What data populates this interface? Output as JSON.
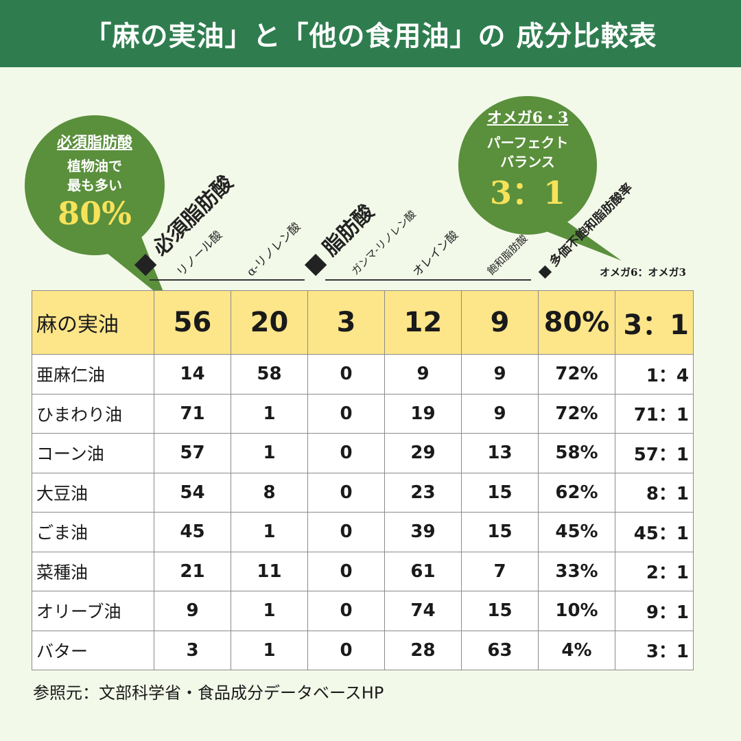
{
  "header": {
    "title": "「麻の実油」と「他の食用油」の 成分比較表"
  },
  "bubble_left": {
    "title": "必須脂肪酸",
    "line1": "植物油で",
    "line2": "最も多い",
    "big": "80%"
  },
  "bubble_right": {
    "title": "オメガ6・3",
    "line1": "パーフェクト",
    "line2": "バランス",
    "big": "3：1"
  },
  "col_headers": {
    "essential": "■ 必須脂肪酸",
    "linoleic": "リノール酸",
    "alpha": "α-リノレン酸",
    "fatty": "■ 脂肪酸",
    "gamma": "ガンマ-リノレン酸",
    "oleic": "オレイン酸",
    "saturated": "飽和脂肪酸",
    "poly": "■ 多価不飽和脂肪酸率"
  },
  "ratio_note": "オメガ6：オメガ3",
  "table": {
    "highlight": {
      "name": "麻の実油",
      "c1": "56",
      "c2": "20",
      "c3": "3",
      "c4": "12",
      "c5": "9",
      "c6": "80%",
      "c7": "3：1"
    },
    "rows": [
      {
        "name": "亜麻仁油",
        "c1": "14",
        "c2": "58",
        "c3": "0",
        "c4": "9",
        "c5": "9",
        "c6": "72%",
        "c7": "1：4"
      },
      {
        "name": "ひまわり油",
        "c1": "71",
        "c2": "1",
        "c3": "0",
        "c4": "19",
        "c5": "9",
        "c6": "72%",
        "c7": "71：1"
      },
      {
        "name": "コーン油",
        "c1": "57",
        "c2": "1",
        "c3": "0",
        "c4": "29",
        "c5": "13",
        "c6": "58%",
        "c7": "57：1"
      },
      {
        "name": "大豆油",
        "c1": "54",
        "c2": "8",
        "c3": "0",
        "c4": "23",
        "c5": "15",
        "c6": "62%",
        "c7": "8：1"
      },
      {
        "name": "ごま油",
        "c1": "45",
        "c2": "1",
        "c3": "0",
        "c4": "39",
        "c5": "15",
        "c6": "45%",
        "c7": "45：1"
      },
      {
        "name": "菜種油",
        "c1": "21",
        "c2": "11",
        "c3": "0",
        "c4": "61",
        "c5": "7",
        "c6": "33%",
        "c7": "2：1"
      },
      {
        "name": "オリーブ油",
        "c1": "9",
        "c2": "1",
        "c3": "0",
        "c4": "74",
        "c5": "15",
        "c6": "10%",
        "c7": "9：1"
      },
      {
        "name": "バター",
        "c1": "3",
        "c2": "1",
        "c3": "0",
        "c4": "28",
        "c5": "63",
        "c6": "4%",
        "c7": "3：1"
      }
    ]
  },
  "footer": {
    "source": "参照元：文部科学省・食品成分データベースHP"
  },
  "colors": {
    "header": "#2f7d4f",
    "bubble": "#5a8f3c",
    "highlight_row": "#fde58a",
    "accent_text": "#f7e25a",
    "background": "#f3f9e9"
  }
}
